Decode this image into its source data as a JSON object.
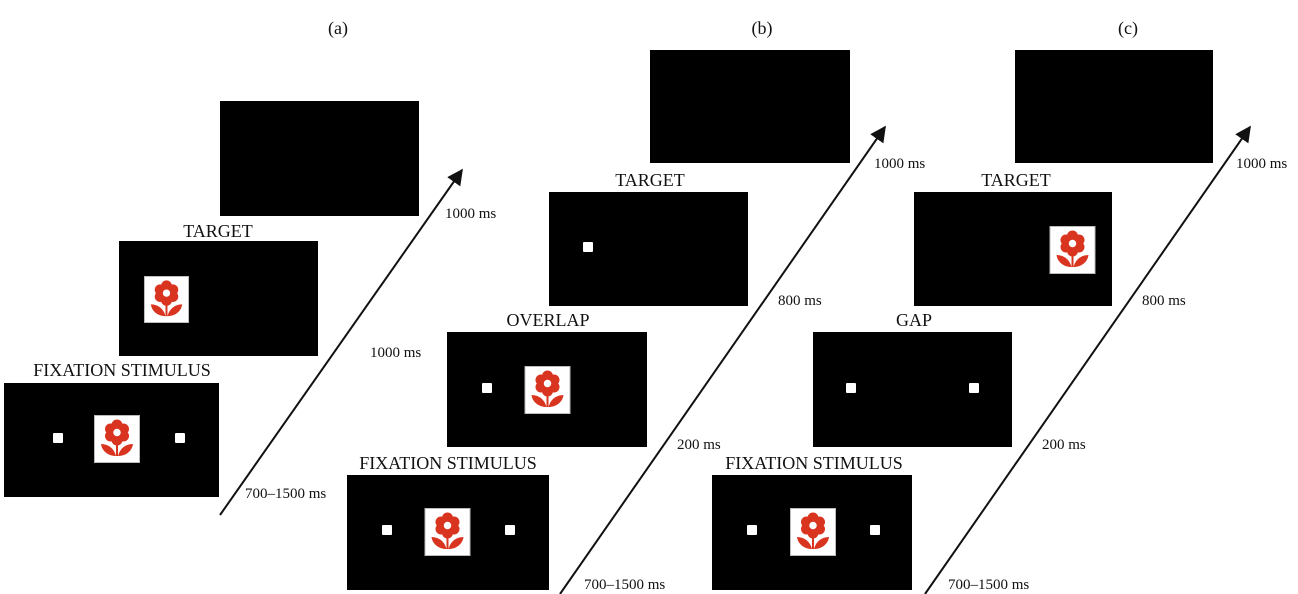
{
  "panels": [
    {
      "label": "(a)",
      "screens": [
        "FIXATION STIMULUS",
        "TARGET"
      ],
      "durations": [
        "700–1500 ms",
        "1000 ms",
        "1000 ms"
      ]
    },
    {
      "label": "(b)",
      "screens": [
        "FIXATION STIMULUS",
        "OVERLAP",
        "TARGET"
      ],
      "durations": [
        "700–1500 ms",
        "200 ms",
        "800 ms",
        "1000 ms"
      ]
    },
    {
      "label": "(c)",
      "screens": [
        "FIXATION STIMULUS",
        "GAP",
        "TARGET"
      ],
      "durations": [
        "700–1500 ms",
        "200 ms",
        "800 ms",
        "1000 ms"
      ]
    }
  ]
}
